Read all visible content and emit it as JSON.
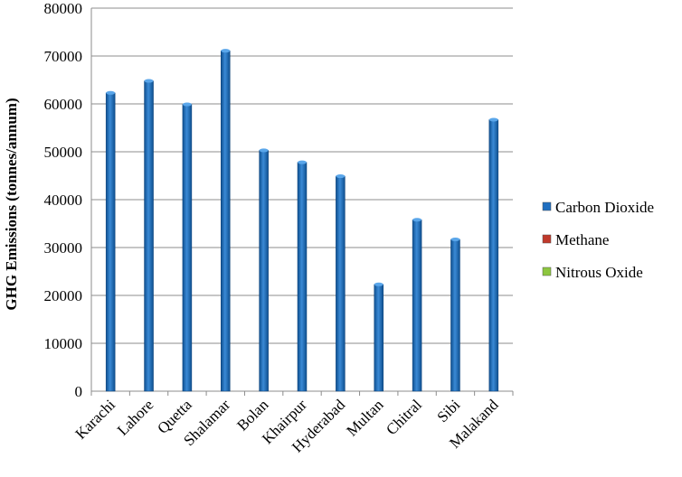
{
  "chart_data": {
    "type": "bar",
    "categories": [
      "Karachi",
      "Lahore",
      "Quetta",
      "Shalamar",
      "Bolan",
      "Khairpur",
      "Hyderabad",
      "Multan",
      "Chitral",
      "Sibi",
      "Malakand"
    ],
    "series": [
      {
        "name": "Carbon Dioxide",
        "color": "#1f6fc0",
        "values": [
          62300,
          64800,
          59900,
          71100,
          50300,
          47800,
          44900,
          22300,
          35800,
          31700,
          56700
        ]
      },
      {
        "name": "Methane",
        "color": "#c0392b",
        "values": [
          0,
          0,
          0,
          0,
          0,
          0,
          0,
          0,
          0,
          0,
          0
        ]
      },
      {
        "name": "Nitrous Oxide",
        "color": "#8dc63f",
        "values": [
          0,
          0,
          0,
          0,
          0,
          0,
          0,
          0,
          0,
          0,
          0
        ]
      }
    ],
    "title": "",
    "xlabel": "",
    "ylabel": "GHG Emissions (tonnes/annum)",
    "ylim": [
      0,
      80000
    ],
    "yticks": [
      "0",
      "10000",
      "20000",
      "30000",
      "40000",
      "50000",
      "60000",
      "70000",
      "80000"
    ],
    "grid": true,
    "legend": "right"
  }
}
